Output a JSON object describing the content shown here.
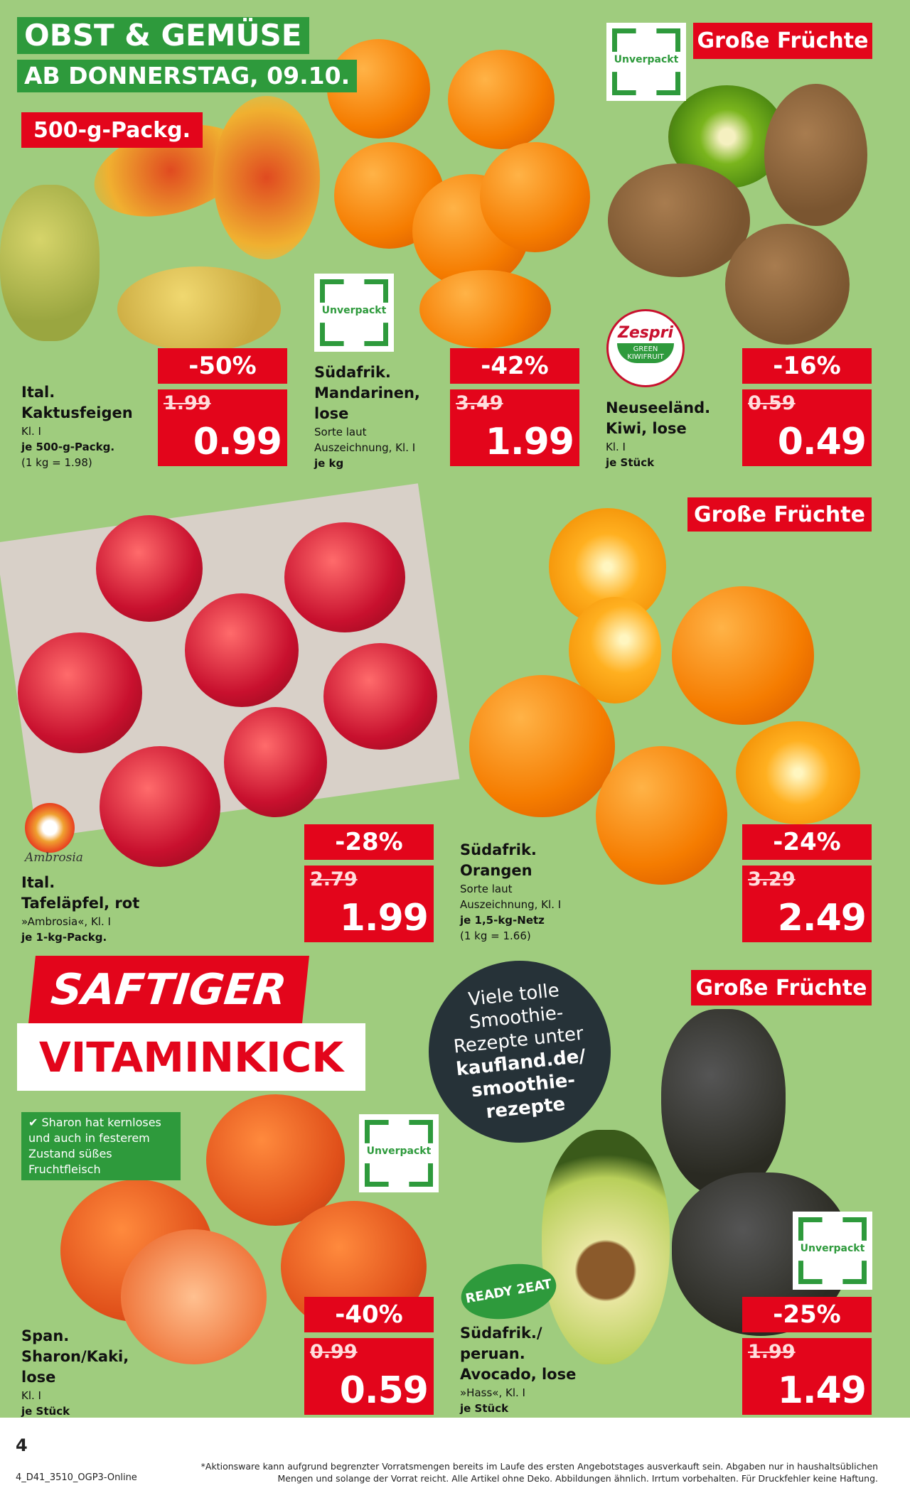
{
  "header": {
    "title": "OBST & GEMÜSE",
    "date": "AB DONNERSTAG, 09.10."
  },
  "badges": {
    "pack": "500-g-Packg.",
    "unverpackt": "Unverpackt",
    "big_fruits": "Große Früchte",
    "ready": "READY 2EAT",
    "zespri": "Zespri",
    "zespri_sub": "GREEN KIWIFRUIT",
    "ambrosia": "Ambrosia"
  },
  "colors": {
    "green": "#2e9a3c",
    "red": "#e3051b",
    "background": "#9fcc7e",
    "dark_circle": "#263238"
  },
  "products": [
    {
      "name1": "Ital.",
      "name2": "Kaktusfeigen",
      "details": [
        "Kl. I"
      ],
      "unit": [
        "je 500-g-Packg."
      ],
      "extra": "(1 kg = 1.98)",
      "discount": "-50%",
      "old_price": "1.99",
      "price": "0.99"
    },
    {
      "name1": "Südafrik.",
      "name2": "Mandarinen,",
      "name3": "lose",
      "details": [
        "Sorte laut",
        "Auszeichnung, Kl. I"
      ],
      "unit": [
        "je kg"
      ],
      "discount": "-42%",
      "old_price": "3.49",
      "price": "1.99"
    },
    {
      "name1": "Neuseeländ.",
      "name2": "Kiwi, lose",
      "details": [
        "Kl. I"
      ],
      "unit": [
        "je Stück"
      ],
      "discount": "-16%",
      "old_price": "0.59",
      "price": "0.49"
    },
    {
      "name1": "Ital.",
      "name2": "Tafeläpfel, rot",
      "details": [
        "»Ambrosia«, Kl. I"
      ],
      "unit": [
        "je 1-kg-Packg."
      ],
      "discount": "-28%",
      "old_price": "2.79",
      "price": "1.99"
    },
    {
      "name1": "Südafrik.",
      "name2": "Orangen",
      "details": [
        "Sorte laut",
        "Auszeichnung, Kl. I"
      ],
      "unit": [
        "je 1,5-kg-Netz"
      ],
      "extra": "(1 kg = 1.66)",
      "discount": "-24%",
      "old_price": "3.29",
      "price": "2.49"
    },
    {
      "name1": "Span.",
      "name2": "Sharon/Kaki,",
      "name3": "lose",
      "details": [
        "Kl. I"
      ],
      "unit": [
        "je Stück"
      ],
      "discount": "-40%",
      "old_price": "0.99",
      "price": "0.59"
    },
    {
      "name1": "Südafrik./",
      "name2": "peruan.",
      "name3": "Avocado, lose",
      "details": [
        "»Hass«, Kl. I"
      ],
      "unit": [
        "je Stück"
      ],
      "discount": "-25%",
      "old_price": "1.99",
      "price": "1.49"
    }
  ],
  "promo": {
    "line1": "SAFTIGER",
    "line2": "VITAMINKICK",
    "info": "✔ Sharon hat kernloses und auch in festerem Zustand süßes Fruchtfleisch",
    "circle": [
      "Viele tolle",
      "Smoothie-",
      "Rezepte unter",
      "kaufland.de/",
      "smoothie-",
      "rezepte"
    ]
  },
  "footer": {
    "page": "4",
    "code": "4_D41_3510_OGP3-Online",
    "disclaimer1": "*Aktionsware kann aufgrund begrenzter Vorratsmengen bereits im Laufe des ersten Angebotstages ausverkauft sein. Abgaben nur in haushaltsüblichen",
    "disclaimer2": "Mengen und solange der Vorrat reicht. Alle Artikel ohne Deko. Abbildungen ähnlich. Irrtum vorbehalten. Für Druckfehler keine Haftung."
  }
}
